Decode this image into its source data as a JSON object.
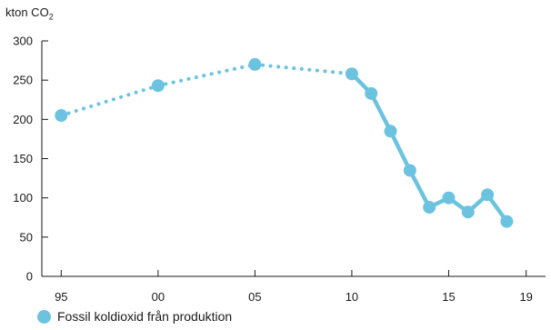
{
  "chart_data": {
    "type": "line",
    "unit_label": "kton CO",
    "unit_subscript": "2",
    "yticks": [
      "0",
      "50",
      "100",
      "150",
      "200",
      "250",
      "300"
    ],
    "xticks": [
      {
        "year": 1995,
        "label": "95"
      },
      {
        "year": 2000,
        "label": "00"
      },
      {
        "year": 2005,
        "label": "05"
      },
      {
        "year": 2010,
        "label": "10"
      },
      {
        "year": 2015,
        "label": "15"
      },
      {
        "year": 2019,
        "label": "19"
      }
    ],
    "ylim": [
      0,
      300
    ],
    "xlim": [
      1994,
      2020
    ],
    "grid": false,
    "legend_position": "bottom-left",
    "series": [
      {
        "name": "Fossil koldioxid från produktion",
        "color": "#6cc3df",
        "dotted_until_year": 2010,
        "points": [
          {
            "x": 1995,
            "y": 205
          },
          {
            "x": 2000,
            "y": 243
          },
          {
            "x": 2005,
            "y": 270
          },
          {
            "x": 2010,
            "y": 258
          },
          {
            "x": 2011,
            "y": 233
          },
          {
            "x": 2012,
            "y": 185
          },
          {
            "x": 2013,
            "y": 135
          },
          {
            "x": 2014,
            "y": 88
          },
          {
            "x": 2015,
            "y": 100
          },
          {
            "x": 2016,
            "y": 82
          },
          {
            "x": 2017,
            "y": 104
          },
          {
            "x": 2018,
            "y": 70
          }
        ]
      }
    ]
  }
}
